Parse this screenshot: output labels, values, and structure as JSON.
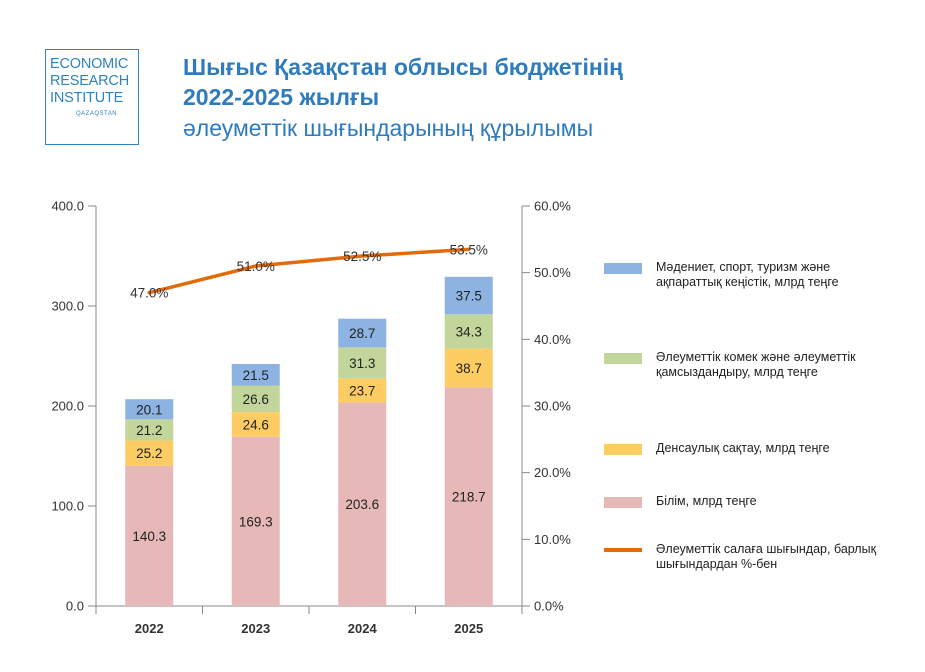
{
  "logo": {
    "line1": "ECONOMIC",
    "line2": "RESEARCH",
    "line3": "INSTITUTE",
    "sub": "QAZAQSTAN"
  },
  "title": {
    "line1": "Шығыс Қазақстан облысы бюджетінің",
    "line2": "2022-2025 жылғы",
    "line3": "әлеуметтік шығындарының құрылымы"
  },
  "colors": {
    "education": "#e6b9b8",
    "health": "#fdcc63",
    "social": "#c2d69b",
    "culture": "#8db3e2",
    "line": "#e36c0a"
  },
  "chart_data": {
    "type": "bar",
    "stacked": true,
    "categories": [
      "2022",
      "2023",
      "2024",
      "2025"
    ],
    "ylim": [
      0,
      400
    ],
    "yticks": [
      "0.0",
      "100.0",
      "200.0",
      "300.0",
      "400.0"
    ],
    "y2lim": [
      0,
      60
    ],
    "y2ticks": [
      "0.0%",
      "10.0%",
      "20.0%",
      "30.0%",
      "40.0%",
      "50.0%",
      "60.0%"
    ],
    "grid": false,
    "legend_position": "right",
    "series": [
      {
        "name": "Білім, млрд теңге",
        "key": "education",
        "values": [
          140.3,
          169.3,
          203.6,
          218.7
        ]
      },
      {
        "name": "Денсаулық сақтау, млрд теңге",
        "key": "health",
        "values": [
          25.2,
          24.6,
          23.7,
          38.7
        ]
      },
      {
        "name": "Әлеуметтік комек және әлеуметтік қамсыздандыру, млрд теңге",
        "key": "social",
        "values": [
          21.2,
          26.6,
          31.3,
          34.3
        ]
      },
      {
        "name": "Мәдениет, спорт, туризм және ақпараттық кеңістік, млрд теңге",
        "key": "culture",
        "values": [
          20.1,
          21.5,
          28.7,
          37.5
        ]
      }
    ],
    "line_series": {
      "name": "Әлеуметтік салаға шығындар, барлық шығындардан %-бен",
      "axis": "right",
      "values": [
        47.0,
        51.0,
        52.5,
        53.5
      ],
      "labels": [
        "47.0%",
        "51.0%",
        "52.5%",
        "53.5%"
      ]
    }
  }
}
